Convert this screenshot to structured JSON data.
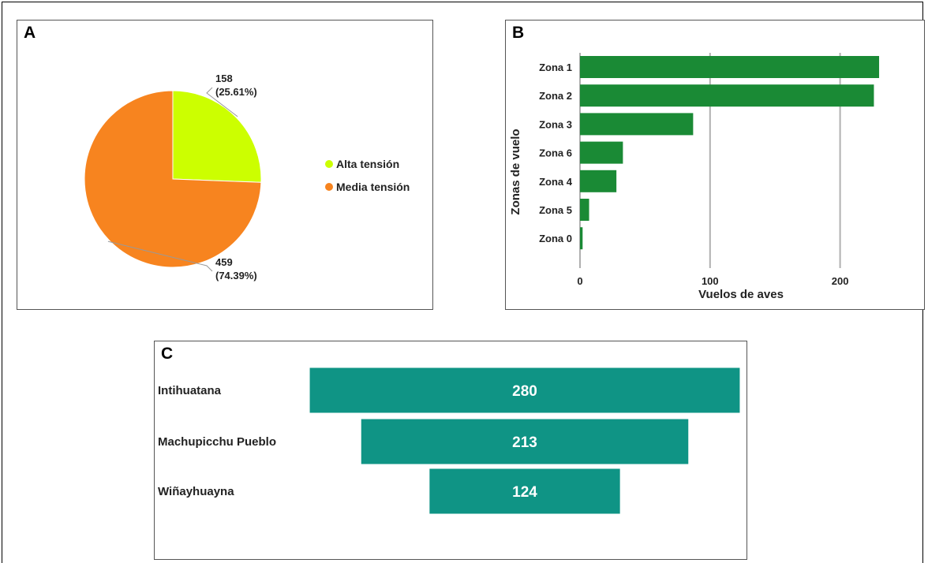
{
  "chart_data": [
    {
      "panel": "A",
      "type": "pie",
      "slices": [
        {
          "label": "Alta tensión",
          "value": 158,
          "percent": "25.61%",
          "color": "#ccff00"
        },
        {
          "label": "Media tensión",
          "value": 459,
          "percent": "74.39%",
          "color": "#f7841f"
        }
      ],
      "legend_position": "right"
    },
    {
      "panel": "B",
      "type": "bar",
      "orientation": "horizontal",
      "categories": [
        "Zona 1",
        "Zona 2",
        "Zona 3",
        "Zona 6",
        "Zona 4",
        "Zona 5",
        "Zona 0"
      ],
      "values": [
        230,
        226,
        87,
        33,
        28,
        7,
        2
      ],
      "xlabel": "Vuelos de aves",
      "ylabel": "Zonas de vuelo",
      "xticks": [
        0,
        100,
        200
      ],
      "xlim": [
        0,
        240
      ],
      "grid": true,
      "color": "#1a8a35"
    },
    {
      "panel": "C",
      "type": "bar",
      "orientation": "horizontal",
      "style": "funnel",
      "categories": [
        "Intihuatana",
        "Machupicchu Pueblo",
        "Wiñayhuayna"
      ],
      "values": [
        280,
        213,
        124
      ],
      "color": "#0f9485"
    }
  ]
}
